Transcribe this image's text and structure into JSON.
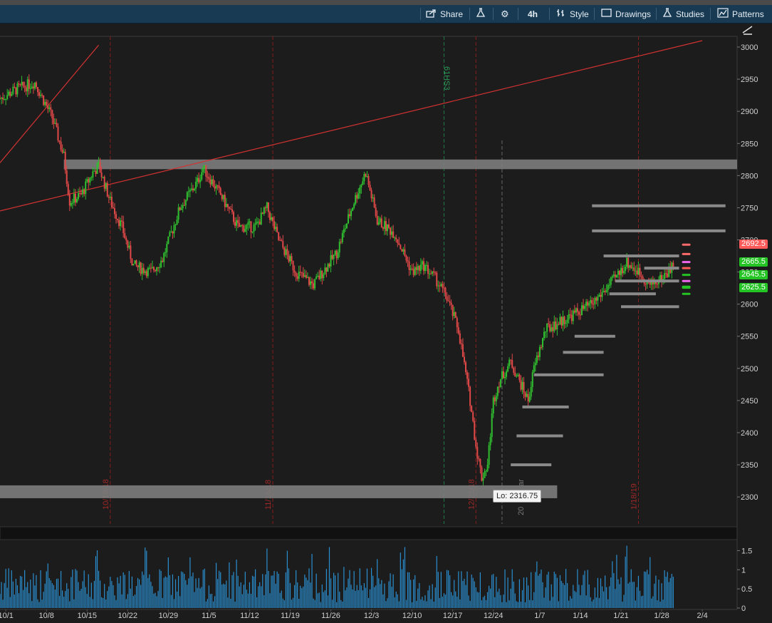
{
  "toolbar": {
    "share": "Share",
    "interval": "4h",
    "style": "Style",
    "drawings": "Drawings",
    "studies": "Studies",
    "patterns": "Patterns",
    "icons": [
      "share-icon",
      "flask-icon",
      "gear-icon",
      "style-icon",
      "drawings-icon",
      "studies-icon",
      "patterns-icon"
    ]
  },
  "labels": {
    "low": "Lo: 2316.75",
    "event": "61HS3",
    "partial_event": "ar",
    "partial_date": "20"
  },
  "price_tags": [
    {
      "text": "2692.5",
      "value": 2692.5,
      "bg": "#ff5a5a",
      "fg": "#ffffff"
    },
    {
      "text": "2665.5",
      "value": 2665.5,
      "bg": "#25c425",
      "fg": "#ffffff"
    },
    {
      "text": "2645.5",
      "value": 2645.5,
      "bg": "#25c425",
      "fg": "#ffffff"
    },
    {
      "text": "2625.5",
      "value": 2625.5,
      "bg": "#25c425",
      "fg": "#ffffff"
    }
  ],
  "chart_data": {
    "type": "candlestick",
    "price_axis": {
      "ticks": [
        2300,
        2350,
        2400,
        2450,
        2500,
        2550,
        2600,
        2650,
        2700,
        2750,
        2800,
        2850,
        2900,
        2950,
        3000
      ],
      "range": [
        2258,
        3010
      ]
    },
    "volume_axis": {
      "ticks": [
        0,
        0.5,
        1,
        1.5
      ],
      "range": [
        0,
        1.75
      ]
    },
    "x_axis": {
      "labels": [
        "10/1",
        "10/8",
        "10/15",
        "10/22",
        "10/29",
        "11/5",
        "11/12",
        "11/19",
        "11/26",
        "12/3",
        "12/10",
        "12/17",
        "12/24",
        "1/7",
        "1/14",
        "1/21",
        "1/28",
        "2/4"
      ],
      "range_days": [
        -1,
        126
      ]
    },
    "vertical_markers": [
      {
        "label": "10/19/18",
        "day": 18
      },
      {
        "label": "11/16/18",
        "day": 46
      },
      {
        "label": "12/21/18",
        "day": 81
      },
      {
        "label": "1/18/19",
        "day": 109
      }
    ],
    "price_path": [
      [
        -1,
        2920
      ],
      [
        2,
        2935
      ],
      [
        5,
        2945
      ],
      [
        8,
        2890
      ],
      [
        10,
        2830
      ],
      [
        11,
        2760
      ],
      [
        13,
        2770
      ],
      [
        15,
        2805
      ],
      [
        16,
        2815
      ],
      [
        18,
        2760
      ],
      [
        20,
        2720
      ],
      [
        22,
        2660
      ],
      [
        25,
        2650
      ],
      [
        27,
        2670
      ],
      [
        30,
        2750
      ],
      [
        33,
        2790
      ],
      [
        34,
        2812
      ],
      [
        37,
        2770
      ],
      [
        40,
        2720
      ],
      [
        43,
        2720
      ],
      [
        45,
        2750
      ],
      [
        47,
        2700
      ],
      [
        50,
        2650
      ],
      [
        53,
        2630
      ],
      [
        57,
        2680
      ],
      [
        60,
        2760
      ],
      [
        62,
        2805
      ],
      [
        64,
        2730
      ],
      [
        67,
        2710
      ],
      [
        70,
        2650
      ],
      [
        72,
        2660
      ],
      [
        74,
        2640
      ],
      [
        76,
        2610
      ],
      [
        78,
        2560
      ],
      [
        80,
        2450
      ],
      [
        81,
        2380
      ],
      [
        82,
        2330
      ],
      [
        83,
        2350
      ],
      [
        84,
        2450
      ],
      [
        85,
        2480
      ],
      [
        87,
        2510
      ],
      [
        89,
        2470
      ],
      [
        90,
        2450
      ],
      [
        91,
        2500
      ],
      [
        93,
        2560
      ],
      [
        95,
        2570
      ],
      [
        97,
        2580
      ],
      [
        99,
        2590
      ],
      [
        101,
        2600
      ],
      [
        103,
        2620
      ],
      [
        105,
        2640
      ],
      [
        107,
        2665
      ],
      [
        109,
        2650
      ],
      [
        111,
        2630
      ],
      [
        113,
        2640
      ],
      [
        115,
        2660
      ]
    ],
    "price_path_note_free": true,
    "trendlines": [
      {
        "x1": -1,
        "y1": 2820,
        "x2": 16,
        "y2": 3003,
        "color": "#d23232"
      },
      {
        "x1": -1,
        "y1": 2745,
        "x2": 120,
        "y2": 3010,
        "color": "#d23232"
      }
    ],
    "zones": [
      {
        "x1": 10,
        "x2": 126,
        "y1": 2810,
        "y2": 2825
      },
      {
        "x1": -1,
        "x2": 95,
        "y1": 2298,
        "y2": 2318
      }
    ],
    "volume_profile_levels": [
      {
        "x1": 101,
        "x2": 124,
        "y": 2753
      },
      {
        "x1": 101,
        "x2": 124,
        "y": 2714
      },
      {
        "x1": 103,
        "x2": 116,
        "y": 2675
      },
      {
        "x1": 110,
        "x2": 116,
        "y": 2656
      },
      {
        "x1": 105,
        "x2": 116,
        "y": 2636
      },
      {
        "x1": 104,
        "x2": 112,
        "y": 2616
      },
      {
        "x1": 106,
        "x2": 116,
        "y": 2596
      },
      {
        "x1": 98,
        "x2": 105,
        "y": 2550
      },
      {
        "x1": 96,
        "x2": 103,
        "y": 2525
      },
      {
        "x1": 91,
        "x2": 103,
        "y": 2490
      },
      {
        "x1": 89,
        "x2": 97,
        "y": 2440
      },
      {
        "x1": 88,
        "x2": 96,
        "y": 2395
      },
      {
        "x1": 87,
        "x2": 94,
        "y": 2350
      }
    ],
    "grid": false
  }
}
